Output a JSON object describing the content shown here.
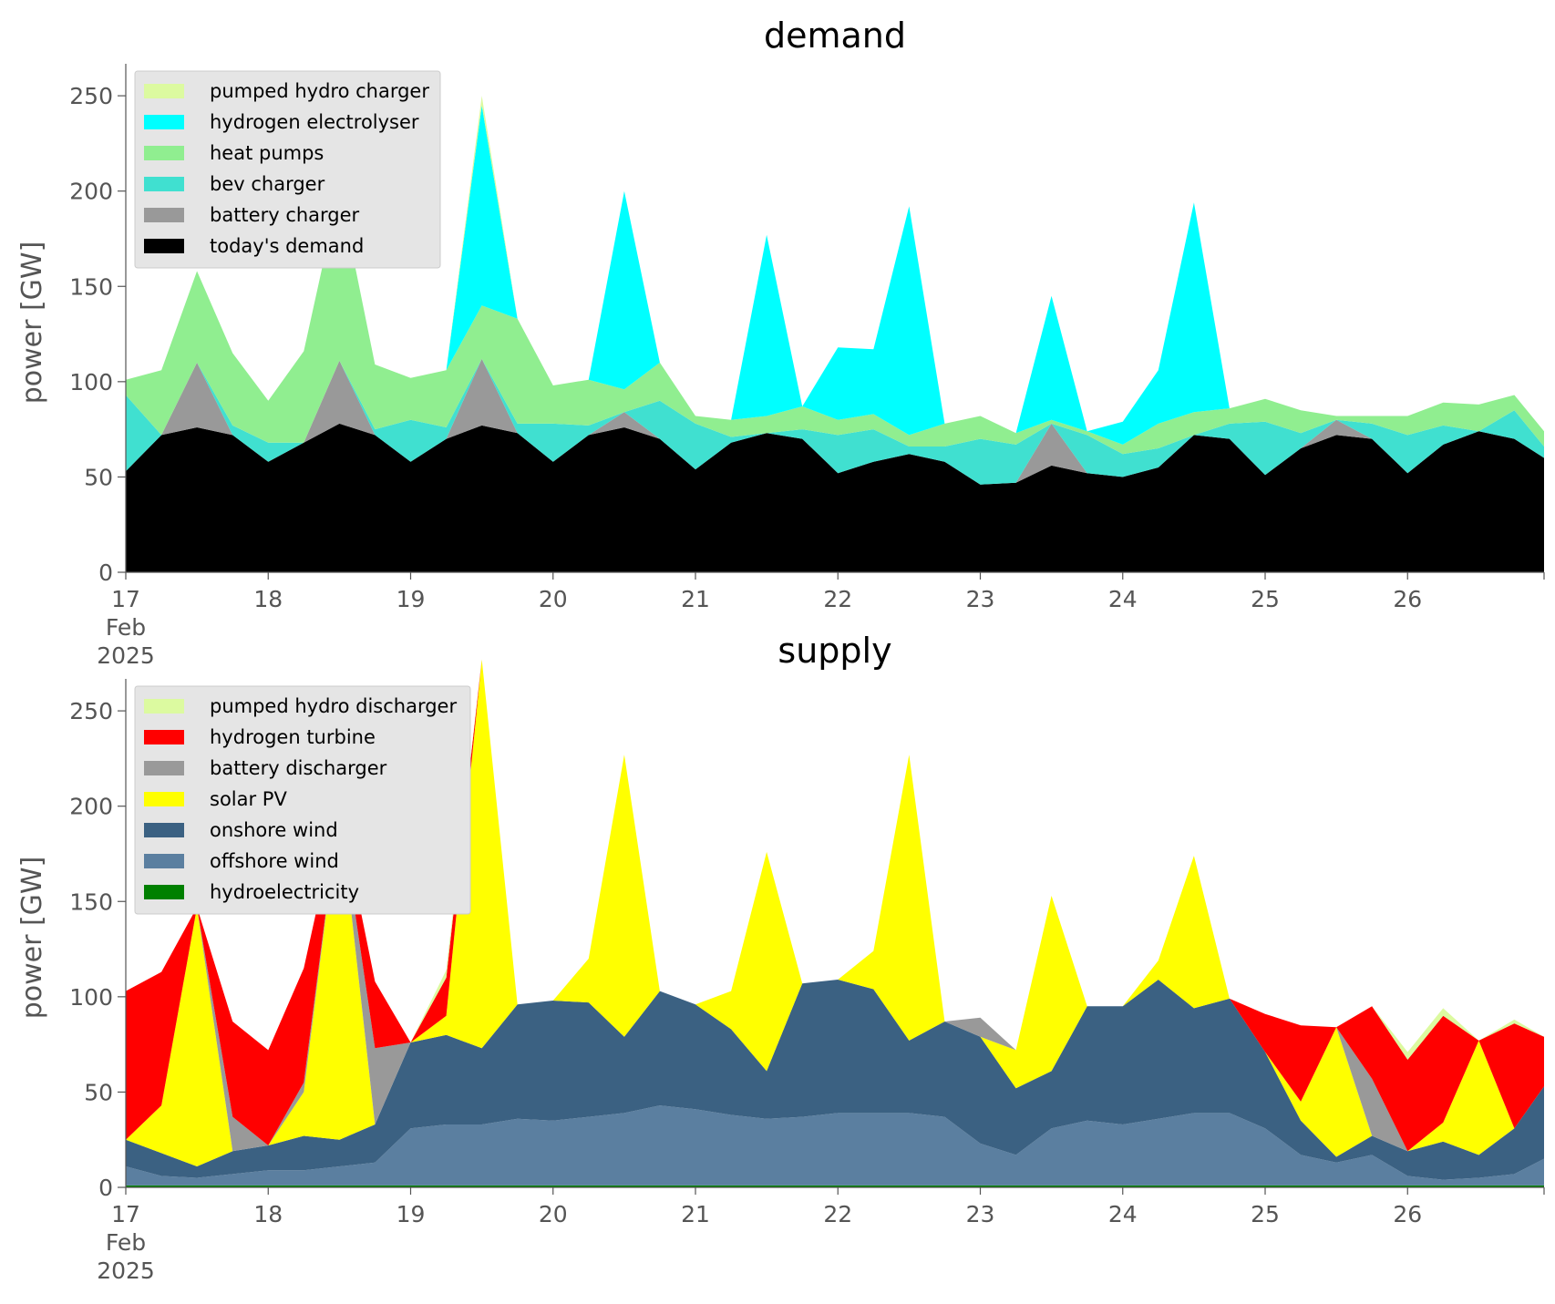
{
  "chart_data": [
    {
      "type": "area",
      "stacked": true,
      "title": "demand",
      "ylabel": "power [GW]",
      "xlabel": "",
      "ylim": [
        0,
        262
      ],
      "yticks": [
        0,
        50,
        100,
        150,
        200,
        250
      ],
      "x_start": "2025-02-17T00:00",
      "x_end": "2025-02-26T23:00",
      "xtick_labels": [
        "17\nFeb\n2025",
        "18",
        "19",
        "20",
        "21",
        "22",
        "23",
        "24",
        "25",
        "26"
      ],
      "grid": false,
      "legend_position": "top-left",
      "x": [
        "2025-02-17T00:00",
        "2025-02-17T06:00",
        "2025-02-17T12:00",
        "2025-02-17T18:00",
        "2025-02-18T00:00",
        "2025-02-18T06:00",
        "2025-02-18T12:00",
        "2025-02-18T18:00",
        "2025-02-19T00:00",
        "2025-02-19T06:00",
        "2025-02-19T12:00",
        "2025-02-19T18:00",
        "2025-02-20T00:00",
        "2025-02-20T06:00",
        "2025-02-20T12:00",
        "2025-02-20T18:00",
        "2025-02-21T00:00",
        "2025-02-21T06:00",
        "2025-02-21T12:00",
        "2025-02-21T18:00",
        "2025-02-22T00:00",
        "2025-02-22T06:00",
        "2025-02-22T12:00",
        "2025-02-22T18:00",
        "2025-02-23T00:00",
        "2025-02-23T06:00",
        "2025-02-23T12:00",
        "2025-02-23T18:00",
        "2025-02-24T00:00",
        "2025-02-24T06:00",
        "2025-02-24T12:00",
        "2025-02-24T18:00",
        "2025-02-25T00:00",
        "2025-02-25T06:00",
        "2025-02-25T12:00",
        "2025-02-25T18:00",
        "2025-02-26T00:00",
        "2025-02-26T06:00",
        "2025-02-26T12:00",
        "2025-02-26T18:00",
        "2025-02-26T23:00"
      ],
      "series": [
        {
          "name": "today's demand",
          "color": "#000000",
          "values": [
            53,
            72,
            76,
            72,
            58,
            68,
            78,
            72,
            58,
            70,
            77,
            73,
            58,
            72,
            76,
            70,
            54,
            68,
            73,
            70,
            52,
            58,
            62,
            58,
            46,
            47,
            56,
            52,
            50,
            55,
            72,
            70,
            51,
            65,
            72,
            70,
            52,
            67,
            74,
            70,
            60
          ]
        },
        {
          "name": "battery charger",
          "color": "#999999",
          "values": [
            0,
            0,
            34,
            0,
            0,
            0,
            33,
            0,
            0,
            0,
            35,
            0,
            0,
            0,
            8,
            0,
            0,
            0,
            0,
            0,
            0,
            0,
            0,
            0,
            0,
            0,
            22,
            0,
            0,
            0,
            0,
            0,
            0,
            0,
            8,
            0,
            0,
            0,
            0,
            0,
            0
          ]
        },
        {
          "name": "bev charger",
          "color": "#40e0d0",
          "values": [
            40,
            0,
            0,
            5,
            10,
            0,
            0,
            3,
            22,
            6,
            0,
            5,
            20,
            5,
            0,
            20,
            24,
            3,
            0,
            5,
            20,
            17,
            4,
            8,
            24,
            20,
            0,
            20,
            12,
            10,
            0,
            8,
            28,
            8,
            0,
            8,
            20,
            10,
            0,
            15,
            6
          ]
        },
        {
          "name": "heat pumps",
          "color": "#90ee90",
          "values": [
            8,
            34,
            48,
            38,
            22,
            48,
            90,
            34,
            22,
            30,
            28,
            55,
            20,
            24,
            12,
            20,
            4,
            9,
            9,
            12,
            8,
            8,
            6,
            12,
            12,
            6,
            2,
            2,
            5,
            13,
            12,
            8,
            12,
            12,
            2,
            4,
            10,
            12,
            14,
            8,
            8
          ]
        },
        {
          "name": "hydrogen electrolyser",
          "color": "#00ffff",
          "values": [
            0,
            0,
            0,
            0,
            0,
            0,
            0,
            0,
            0,
            0,
            105,
            0,
            0,
            0,
            104,
            0,
            0,
            0,
            95,
            0,
            38,
            34,
            120,
            0,
            0,
            0,
            65,
            0,
            12,
            28,
            110,
            0,
            0,
            0,
            0,
            0,
            0,
            0,
            0,
            0,
            0
          ]
        },
        {
          "name": "pumped hydro charger",
          "color": "#dcfaa0",
          "values": [
            0,
            0,
            0,
            0,
            0,
            0,
            0,
            0,
            0,
            0,
            5,
            0,
            0,
            0,
            0,
            0,
            0,
            0,
            0,
            0,
            0,
            0,
            0,
            0,
            0,
            0,
            0,
            0,
            0,
            0,
            0,
            0,
            0,
            0,
            0,
            0,
            0,
            0,
            0,
            0,
            0
          ]
        }
      ]
    },
    {
      "type": "area",
      "stacked": true,
      "title": "supply",
      "ylabel": "power [GW]",
      "xlabel": "",
      "ylim": [
        0,
        262
      ],
      "yticks": [
        0,
        50,
        100,
        150,
        200,
        250
      ],
      "x_start": "2025-02-17T00:00",
      "x_end": "2025-02-26T23:00",
      "xtick_labels": [
        "17\nFeb\n2025",
        "18",
        "19",
        "20",
        "21",
        "22",
        "23",
        "24",
        "25",
        "26"
      ],
      "grid": false,
      "legend_position": "top-left",
      "x": [
        "2025-02-17T00:00",
        "2025-02-17T06:00",
        "2025-02-17T12:00",
        "2025-02-17T18:00",
        "2025-02-18T00:00",
        "2025-02-18T06:00",
        "2025-02-18T12:00",
        "2025-02-18T18:00",
        "2025-02-19T00:00",
        "2025-02-19T06:00",
        "2025-02-19T12:00",
        "2025-02-19T18:00",
        "2025-02-20T00:00",
        "2025-02-20T06:00",
        "2025-02-20T12:00",
        "2025-02-20T18:00",
        "2025-02-21T00:00",
        "2025-02-21T06:00",
        "2025-02-21T12:00",
        "2025-02-21T18:00",
        "2025-02-22T00:00",
        "2025-02-22T06:00",
        "2025-02-22T12:00",
        "2025-02-22T18:00",
        "2025-02-23T00:00",
        "2025-02-23T06:00",
        "2025-02-23T12:00",
        "2025-02-23T18:00",
        "2025-02-24T00:00",
        "2025-02-24T06:00",
        "2025-02-24T12:00",
        "2025-02-24T18:00",
        "2025-02-25T00:00",
        "2025-02-25T06:00",
        "2025-02-25T12:00",
        "2025-02-25T18:00",
        "2025-02-26T00:00",
        "2025-02-26T06:00",
        "2025-02-26T12:00",
        "2025-02-26T18:00",
        "2025-02-26T23:00"
      ],
      "series": [
        {
          "name": "hydroelectricity",
          "color": "#008000",
          "values": [
            1,
            1,
            1,
            1,
            1,
            1,
            1,
            1,
            1,
            1,
            1,
            1,
            1,
            1,
            1,
            1,
            1,
            1,
            1,
            1,
            1,
            1,
            1,
            1,
            1,
            1,
            1,
            1,
            1,
            1,
            1,
            1,
            1,
            1,
            1,
            1,
            1,
            1,
            1,
            1,
            1
          ]
        },
        {
          "name": "offshore wind",
          "color": "#5b7fa0",
          "values": [
            10,
            5,
            4,
            6,
            8,
            8,
            10,
            12,
            30,
            32,
            32,
            35,
            34,
            36,
            38,
            42,
            40,
            37,
            35,
            36,
            38,
            38,
            38,
            36,
            22,
            16,
            30,
            34,
            32,
            35,
            38,
            38,
            30,
            16,
            12,
            16,
            5,
            3,
            4,
            6,
            14
          ]
        },
        {
          "name": "onshore wind",
          "color": "#3b6182",
          "values": [
            14,
            12,
            6,
            12,
            13,
            18,
            14,
            20,
            45,
            47,
            40,
            60,
            63,
            60,
            40,
            60,
            55,
            45,
            25,
            70,
            70,
            65,
            38,
            50,
            56,
            35,
            30,
            60,
            62,
            73,
            55,
            60,
            40,
            18,
            3,
            10,
            13,
            20,
            12,
            24,
            38
          ]
        },
        {
          "name": "solar PV",
          "color": "#ffff00",
          "values": [
            0,
            25,
            136,
            0,
            0,
            23,
            175,
            0,
            0,
            10,
            204,
            0,
            0,
            23,
            148,
            0,
            0,
            20,
            115,
            0,
            0,
            20,
            150,
            0,
            0,
            20,
            92,
            0,
            0,
            10,
            80,
            0,
            0,
            10,
            68,
            0,
            0,
            10,
            60,
            0,
            0
          ]
        },
        {
          "name": "battery discharger",
          "color": "#999999",
          "values": [
            0,
            0,
            0,
            18,
            0,
            5,
            0,
            40,
            0,
            0,
            0,
            0,
            0,
            0,
            0,
            0,
            0,
            0,
            0,
            0,
            0,
            0,
            0,
            0,
            10,
            0,
            0,
            0,
            0,
            0,
            0,
            0,
            0,
            0,
            0,
            30,
            0,
            0,
            0,
            0,
            0
          ]
        },
        {
          "name": "hydrogen turbine",
          "color": "#ff0000",
          "values": [
            78,
            70,
            0,
            50,
            50,
            60,
            0,
            35,
            0,
            20,
            0,
            0,
            0,
            0,
            0,
            0,
            0,
            0,
            0,
            0,
            0,
            0,
            0,
            0,
            0,
            0,
            0,
            0,
            0,
            0,
            0,
            0,
            20,
            40,
            0,
            38,
            48,
            56,
            0,
            55,
            26
          ]
        },
        {
          "name": "pumped hydro discharger",
          "color": "#dcfaa0",
          "values": [
            0,
            0,
            0,
            0,
            0,
            0,
            0,
            0,
            0,
            4,
            0,
            0,
            0,
            0,
            0,
            0,
            0,
            0,
            0,
            0,
            0,
            0,
            0,
            0,
            0,
            0,
            0,
            0,
            0,
            0,
            0,
            0,
            0,
            0,
            0,
            0,
            4,
            4,
            0,
            2,
            0
          ]
        }
      ]
    }
  ]
}
